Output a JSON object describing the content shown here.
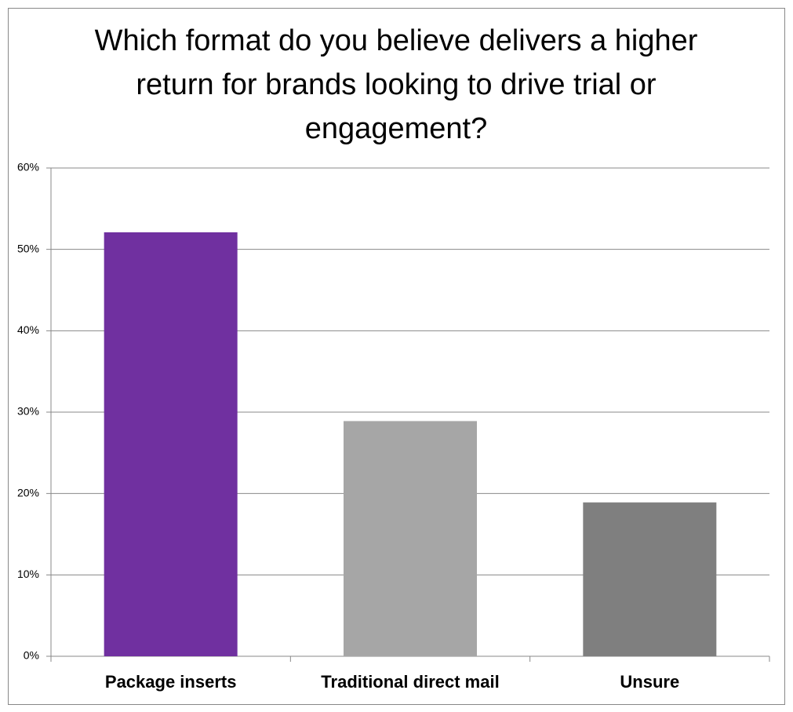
{
  "chart_data": {
    "type": "bar",
    "title": "Which format do you believe delivers a higher return for brands looking to drive trial or engagement?",
    "categories": [
      "Package inserts",
      "Traditional direct mail",
      "Unsure"
    ],
    "values": [
      52.1,
      28.9,
      18.9
    ],
    "colors": [
      "#7030a0",
      "#a6a6a6",
      "#7f7f7f"
    ],
    "ylim": [
      0,
      60
    ],
    "yticks": [
      {
        "value": 0,
        "label": "0%"
      },
      {
        "value": 10,
        "label": "10%"
      },
      {
        "value": 20,
        "label": "20%"
      },
      {
        "value": 30,
        "label": "30%"
      },
      {
        "value": 40,
        "label": "40%"
      },
      {
        "value": 50,
        "label": "50%"
      },
      {
        "value": 60,
        "label": "60%"
      }
    ],
    "grid": true
  }
}
